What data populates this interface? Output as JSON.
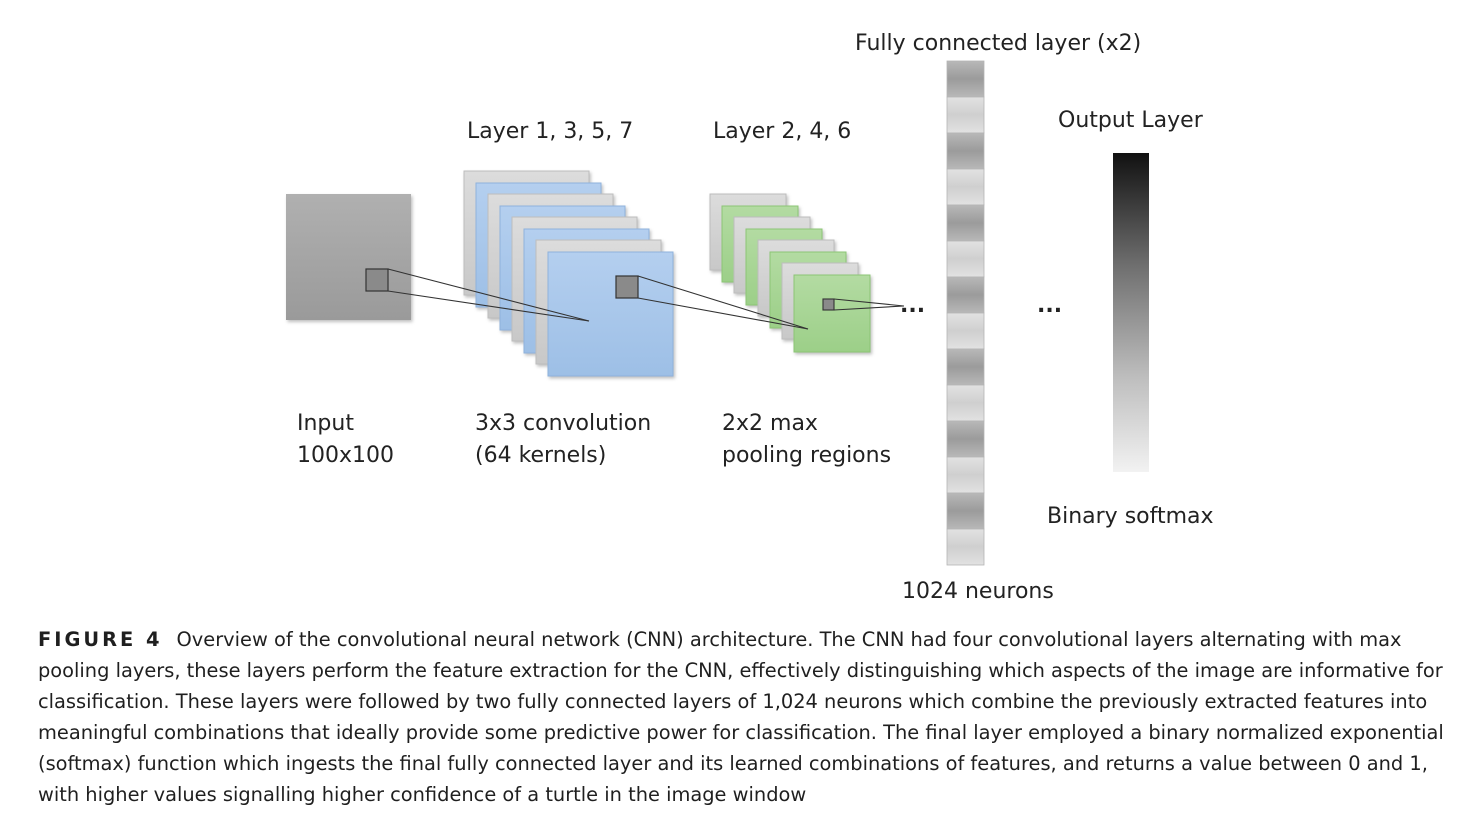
{
  "figure": {
    "labels": {
      "fully_connected": "Fully connected layer (x2)",
      "output_layer": "Output Layer",
      "conv_layers": "Layer 1, 3, 5, 7",
      "pool_layers": "Layer 2, 4, 6",
      "input_line1": "Input",
      "input_line2": "100x100",
      "conv_line1": "3x3 convolution",
      "conv_line2": "(64 kernels)",
      "pool_line1": "2x2  max",
      "pool_line2": "pooling regions",
      "neurons": "1024 neurons",
      "softmax": "Binary softmax",
      "ellipsis_after_pool": "...",
      "ellipsis_after_fc": "..."
    },
    "colors": {
      "input_gray": "#a6a6a6",
      "conv_blue": "#a9c7eb",
      "pool_green": "#a9d597",
      "stack_gray": "#d2d2d2"
    }
  },
  "caption": {
    "label": "FIGURE 4",
    "text": "Overview of the convolutional neural network (CNN) architecture. The CNN had four convolutional layers alternating with max pooling layers, these layers perform the feature extraction for the CNN, effectively distinguishing which aspects of the image are informative for classification. These layers were followed by two fully connected layers of 1,024 neurons which combine the previously extracted features into meaningful combinations that ideally provide some predictive power for classification. The final layer employed a binary normalized exponential (softmax) function which ingests the final fully connected layer and its learned combinations of features, and returns a value between 0 and 1, with higher values signalling higher confidence of a turtle in the image window"
  }
}
